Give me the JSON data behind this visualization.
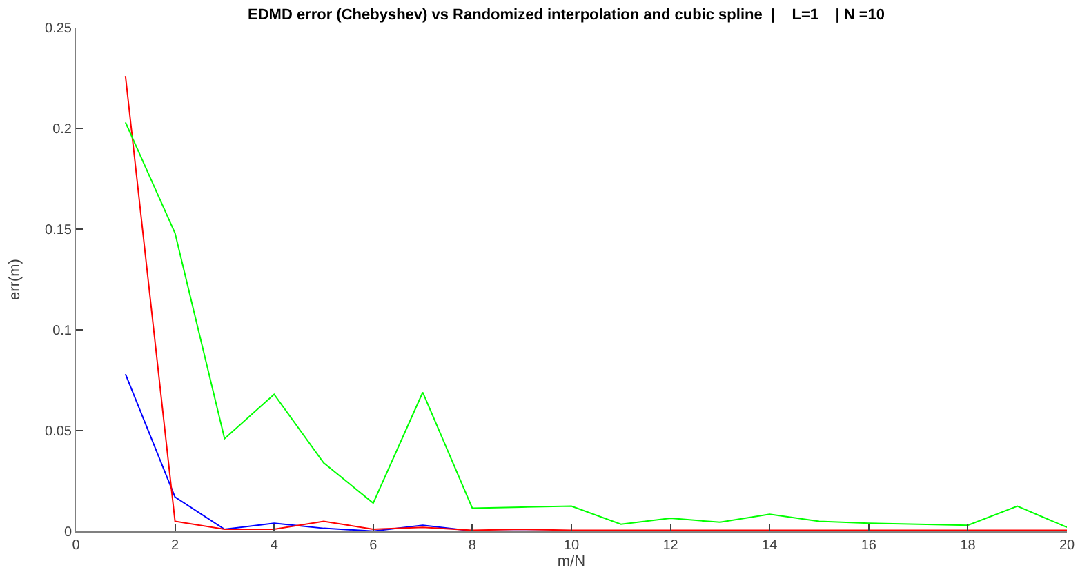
{
  "chart_data": {
    "type": "line",
    "title": "EDMD error (Chebyshev) vs Randomized interpolation and cubic spline  |    L=1    | N =10",
    "xlabel": "m/N",
    "ylabel": "err(m)",
    "x": [
      1,
      2,
      3,
      4,
      5,
      6,
      7,
      8,
      9,
      10,
      11,
      12,
      13,
      14,
      15,
      16,
      17,
      18,
      19,
      20
    ],
    "series": [
      {
        "color": "#0000ff",
        "values": [
          0.078,
          0.017,
          0.001,
          0.004,
          0.0015,
          0.0001,
          0.003,
          0.0002,
          0.0001,
          0.0001,
          null,
          null,
          null,
          null,
          null,
          null,
          null,
          null,
          null,
          null
        ]
      },
      {
        "color": "#ff0000",
        "values": [
          0.226,
          0.005,
          0.001,
          0.001,
          0.005,
          0.001,
          0.002,
          0.0005,
          0.001,
          0.0005,
          0.0005,
          0.0005,
          0.0005,
          0.0005,
          0.0005,
          0.0005,
          0.0005,
          0.0005,
          0.0005,
          0.0005
        ]
      },
      {
        "color": "#00ff00",
        "values": [
          0.203,
          0.148,
          0.046,
          0.068,
          0.034,
          0.014,
          0.069,
          0.0115,
          0.012,
          0.0125,
          0.0035,
          0.0065,
          0.0045,
          0.0085,
          0.005,
          0.004,
          0.0035,
          0.003,
          0.0125,
          0.002
        ]
      }
    ],
    "xlim": [
      0,
      20
    ],
    "xticks": [
      0,
      2,
      4,
      6,
      8,
      10,
      12,
      14,
      16,
      18,
      20
    ],
    "ylim": [
      0,
      0.25
    ],
    "yticks": [
      0,
      0.05,
      0.1,
      0.15,
      0.2,
      0.25
    ],
    "line_style": "solid"
  }
}
